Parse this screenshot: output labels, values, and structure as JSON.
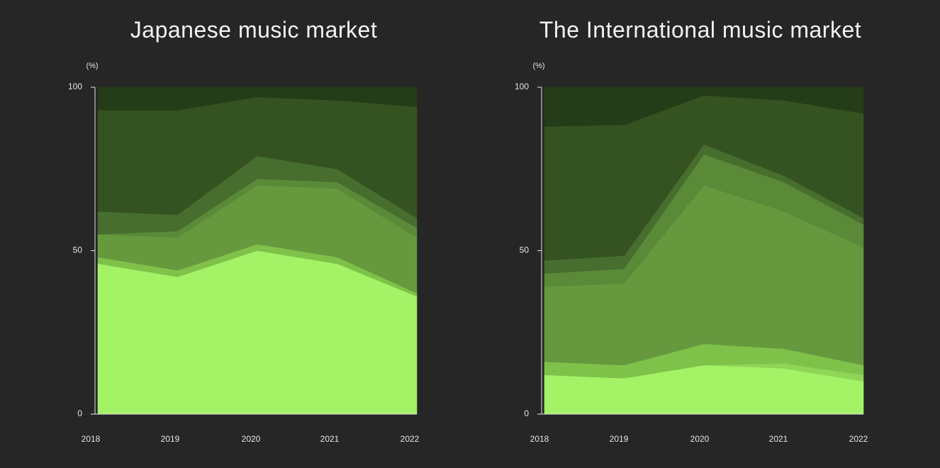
{
  "chart_data": [
    {
      "type": "area",
      "stacked": true,
      "title": "Japanese music market",
      "y_unit": "(%)",
      "x": [
        "2018",
        "2019",
        "2020",
        "2021",
        "2022"
      ],
      "ylim": [
        0,
        100
      ],
      "y_ticks": [
        "0",
        "50",
        "100"
      ],
      "grid": false,
      "legend": "none",
      "series": [
        {
          "color": "#a4f266",
          "values": [
            46,
            42,
            50,
            46,
            36
          ]
        },
        {
          "color": "#7fc24a",
          "values": [
            2,
            2,
            2,
            2,
            1
          ]
        },
        {
          "color": "#66993e",
          "values": [
            7,
            10,
            18,
            21,
            17
          ]
        },
        {
          "color": "#5a8a38",
          "values": [
            0,
            2,
            2,
            2,
            3
          ]
        },
        {
          "color": "#476e2e",
          "values": [
            7,
            5,
            7,
            4,
            3
          ]
        },
        {
          "color": "#355221",
          "values": [
            31,
            32,
            18,
            21,
            34
          ]
        },
        {
          "color": "#253c18",
          "values": [
            7,
            7,
            3,
            4,
            6
          ]
        }
      ]
    },
    {
      "type": "area",
      "stacked": true,
      "title": "The International music market",
      "y_unit": "(%)",
      "x": [
        "2018",
        "2019",
        "2020",
        "2021",
        "2022"
      ],
      "ylim": [
        0,
        100
      ],
      "y_ticks": [
        "0",
        "50",
        "100"
      ],
      "grid": false,
      "legend": "none",
      "series": [
        {
          "color": "#a4f266",
          "values": [
            12,
            11,
            15,
            14,
            10
          ]
        },
        {
          "color": "#8fd657",
          "values": [
            0,
            0,
            0,
            1.5,
            2
          ]
        },
        {
          "color": "#7fc24a",
          "values": [
            4,
            4,
            6.5,
            4.5,
            3
          ]
        },
        {
          "color": "#66993e",
          "values": [
            23,
            25,
            48.5,
            42,
            36
          ]
        },
        {
          "color": "#5a8a38",
          "values": [
            4,
            4.5,
            9.5,
            9,
            7
          ]
        },
        {
          "color": "#476e2e",
          "values": [
            4,
            4,
            3,
            2,
            2
          ]
        },
        {
          "color": "#355221",
          "values": [
            41,
            40,
            15,
            23,
            32
          ]
        },
        {
          "color": "#253c18",
          "values": [
            12,
            11.5,
            2.5,
            4,
            8
          ]
        }
      ]
    }
  ]
}
